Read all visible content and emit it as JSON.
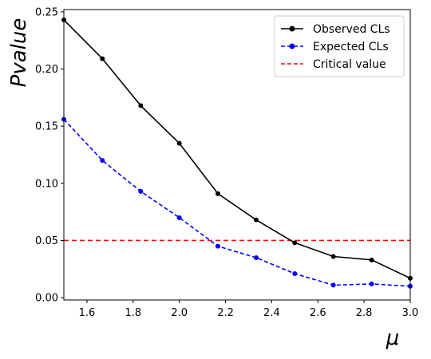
{
  "chart_data": {
    "type": "line",
    "xlabel": "μ",
    "ylabel": "Pvalue",
    "xlim": [
      1.5,
      3.0
    ],
    "ylim": [
      -0.002,
      0.252
    ],
    "x_ticks": [
      "1.6",
      "1.8",
      "2.0",
      "2.2",
      "2.4",
      "2.6",
      "2.8",
      "3.0"
    ],
    "y_ticks": [
      "0.00",
      "0.05",
      "0.10",
      "0.15",
      "0.20",
      "0.25"
    ],
    "x_tick_values": [
      1.6,
      1.8,
      2.0,
      2.2,
      2.4,
      2.6,
      2.8,
      3.0
    ],
    "y_tick_values": [
      0.0,
      0.05,
      0.1,
      0.15,
      0.2,
      0.25
    ],
    "grid": false,
    "legend_position": "top-right",
    "x": [
      1.5,
      1.667,
      1.833,
      2.0,
      2.167,
      2.333,
      2.5,
      2.667,
      2.833,
      3.0
    ],
    "series": [
      {
        "name": "Observed CLs",
        "color": "#000000",
        "linestyle": "solid",
        "marker": "circle",
        "values": [
          0.243,
          0.209,
          0.168,
          0.135,
          0.091,
          0.068,
          0.048,
          0.036,
          0.033,
          0.017
        ]
      },
      {
        "name": "Expected CLs",
        "color": "#0000ff",
        "linestyle": "dashed",
        "marker": "circle",
        "values": [
          0.156,
          0.12,
          0.093,
          0.07,
          0.045,
          0.035,
          0.021,
          0.011,
          0.012,
          0.01
        ]
      }
    ],
    "reference_lines": [
      {
        "name": "Critical value",
        "color": "#ff0000",
        "linestyle": "dashed",
        "y": 0.05
      }
    ]
  }
}
